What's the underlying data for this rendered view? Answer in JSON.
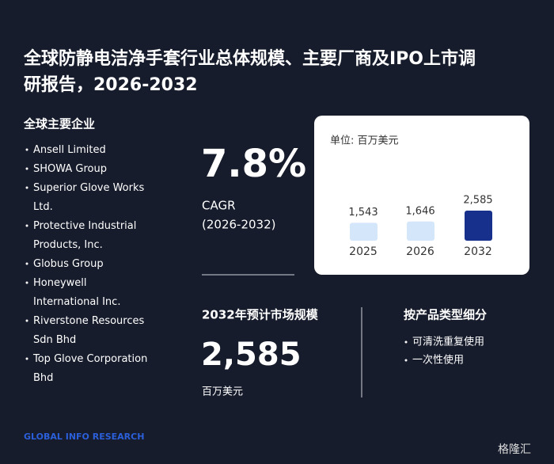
{
  "title": "全球防静电洁净手套行业总体规模、主要厂商及IPO上市调研报告，2026-2032",
  "companies": {
    "heading": "全球主要企业",
    "items": [
      "Ansell Limited",
      "SHOWA Group",
      "Superior Glove Works Ltd.",
      "Protective Industrial Products, Inc.",
      "Globus Group",
      "Honeywell International Inc.",
      "Riverstone Resources Sdn Bhd",
      "Top Glove Corporation Bhd"
    ]
  },
  "cagr": {
    "value": "7.8%",
    "label": "CAGR",
    "period": "(2026-2032)"
  },
  "market": {
    "heading": "2032年预计市场规模",
    "value": "2,585",
    "unit": "百万美元"
  },
  "segments": {
    "heading": "按产品类型细分",
    "items": [
      "可清洗重复使用",
      "一次性使用"
    ]
  },
  "logo": "GLOBAL INFO RESEARCH",
  "watermark": "格隆汇",
  "chart_data": {
    "type": "bar",
    "subtitle": "单位: 百万美元",
    "categories": [
      "2025",
      "2026",
      "2032"
    ],
    "values": [
      1543,
      1646,
      2585
    ],
    "value_labels": [
      "1,543",
      "1,646",
      "2,585"
    ],
    "colors": [
      "#d4e6fa",
      "#d4e6fa",
      "#16308c"
    ]
  }
}
